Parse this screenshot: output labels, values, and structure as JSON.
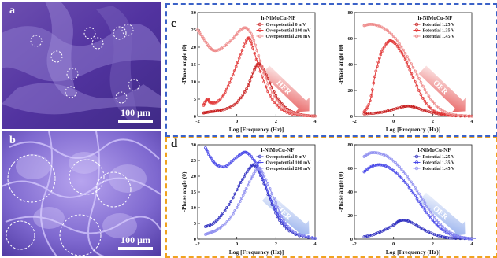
{
  "panels": {
    "a": {
      "label": "a",
      "scale": "100 μm"
    },
    "b": {
      "label": "b",
      "scale": "100 μm"
    },
    "c": {
      "label": "c"
    },
    "d": {
      "label": "d"
    }
  },
  "colors": {
    "red": "#e23a3a",
    "blue": "#3d3de0",
    "box_blue": "#3b62c8",
    "box_orange": "#f0a21e"
  },
  "chart_data": [
    {
      "id": "c-left",
      "type": "line",
      "title": "h-NiMoCu-NF",
      "xlabel": "Log [Frequency (Hz)]",
      "ylabel": "-Phase angle (θ)",
      "xlim": [
        -2,
        4
      ],
      "ylim": [
        0,
        30
      ],
      "xticks": [
        "-2",
        "0",
        "2",
        "4"
      ],
      "yticks": [
        "0",
        "5",
        "10",
        "15",
        "20",
        "25",
        "30"
      ],
      "arrow_text": "HER",
      "arrow_color": "#e23a3a",
      "legend": [
        "Overpotential 0 mV",
        "Overpotential 100 mV",
        "Overpotential 200 mV"
      ],
      "series": [
        {
          "name": "Overpotential 0 mV",
          "color": "#c81e1e",
          "points": [
            [
              -1.7,
              1
            ],
            [
              -1.4,
              1.3
            ],
            [
              -1.0,
              1.6
            ],
            [
              -0.5,
              2.3
            ],
            [
              0,
              4
            ],
            [
              0.5,
              8
            ],
            [
              0.9,
              13.5
            ],
            [
              1.15,
              15.2
            ],
            [
              1.5,
              12
            ],
            [
              2.0,
              6
            ],
            [
              2.5,
              2.5
            ],
            [
              3.0,
              0.9
            ],
            [
              3.5,
              0.3
            ],
            [
              4.0,
              0.1
            ]
          ]
        },
        {
          "name": "Overpotential 100 mV",
          "color": "#e23a3a",
          "points": [
            [
              -1.7,
              3.2
            ],
            [
              -1.5,
              5
            ],
            [
              -1.35,
              4
            ],
            [
              -1.0,
              4.2
            ],
            [
              -0.6,
              7
            ],
            [
              -0.2,
              12
            ],
            [
              0.2,
              18
            ],
            [
              0.55,
              22.5
            ],
            [
              0.75,
              21
            ],
            [
              1.2,
              13
            ],
            [
              1.7,
              6
            ],
            [
              2.3,
              2
            ],
            [
              3.0,
              0.5
            ],
            [
              4.0,
              0.1
            ]
          ]
        },
        {
          "name": "Overpotential 200 mV",
          "color": "#ee8a8a",
          "points": [
            [
              -2.0,
              25
            ],
            [
              -1.7,
              22.5
            ],
            [
              -1.4,
              20
            ],
            [
              -1.1,
              19
            ],
            [
              -0.7,
              20
            ],
            [
              -0.2,
              22.5
            ],
            [
              0.2,
              25
            ],
            [
              0.5,
              25.5
            ],
            [
              0.8,
              23
            ],
            [
              1.2,
              16
            ],
            [
              1.7,
              8
            ],
            [
              2.3,
              3
            ],
            [
              3.0,
              0.8
            ],
            [
              4.0,
              0.1
            ]
          ]
        }
      ]
    },
    {
      "id": "c-right",
      "type": "line",
      "title": "h-NiMoCu-NF",
      "xlabel": "Log [Frequency (Hz)]",
      "ylabel": "-Phase angle (θ)",
      "xlim": [
        -2,
        4
      ],
      "ylim": [
        0,
        80
      ],
      "xticks": [
        "-2",
        "0",
        "2",
        "4"
      ],
      "yticks": [
        "0",
        "20",
        "40",
        "60",
        "80"
      ],
      "arrow_text": "OER",
      "arrow_color": "#e23a3a",
      "legend": [
        "Potential 1.25 V",
        "Potential 1.35 V",
        "Potential 1.45 V"
      ],
      "series": [
        {
          "name": "Potential 1.25 V",
          "color": "#c81e1e",
          "points": [
            [
              -1.5,
              2
            ],
            [
              -1.0,
              2.5
            ],
            [
              -0.5,
              3.5
            ],
            [
              0,
              5.5
            ],
            [
              0.5,
              7.5
            ],
            [
              0.8,
              8
            ],
            [
              1.2,
              6.5
            ],
            [
              1.7,
              4
            ],
            [
              2.3,
              2
            ],
            [
              3.0,
              0.8
            ],
            [
              4.0,
              0.2
            ]
          ]
        },
        {
          "name": "Potential 1.35 V",
          "color": "#e23a3a",
          "points": [
            [
              -1.5,
              3.5
            ],
            [
              -1.2,
              12
            ],
            [
              -0.9,
              35
            ],
            [
              -0.6,
              50
            ],
            [
              -0.3,
              57
            ],
            [
              -0.1,
              58
            ],
            [
              0.2,
              54
            ],
            [
              0.6,
              44
            ],
            [
              1.0,
              30
            ],
            [
              1.5,
              14
            ],
            [
              2.0,
              5
            ],
            [
              2.5,
              1.8
            ],
            [
              3.0,
              0.6
            ],
            [
              4.0,
              0.1
            ]
          ]
        },
        {
          "name": "Potential 1.45 V",
          "color": "#ee8a8a",
          "points": [
            [
              -1.5,
              70
            ],
            [
              -1.2,
              71
            ],
            [
              -0.8,
              70
            ],
            [
              -0.3,
              66
            ],
            [
              0.2,
              58
            ],
            [
              0.7,
              46
            ],
            [
              1.2,
              32
            ],
            [
              1.7,
              18
            ],
            [
              2.2,
              8
            ],
            [
              2.7,
              3
            ],
            [
              3.2,
              1
            ],
            [
              4.0,
              0.2
            ]
          ]
        }
      ]
    },
    {
      "id": "d-left",
      "type": "line",
      "title": "l-NiMoCu-NF",
      "xlabel": "Log [Frequency (Hz)]",
      "ylabel": "-Phase angle (θ)",
      "xlim": [
        -2,
        4
      ],
      "ylim": [
        0,
        30
      ],
      "xticks": [
        "-2",
        "0",
        "2",
        "4"
      ],
      "yticks": [
        "0",
        "5",
        "10",
        "15",
        "20",
        "25",
        "30"
      ],
      "arrow_text": "HER",
      "arrow_color": "#7a9be8",
      "legend": [
        "Overpotential 0 mV",
        "Overpotential 100 mV",
        "Overpotential 200 mV"
      ],
      "series": [
        {
          "name": "Overpotential 0 mV",
          "color": "#3030c0",
          "points": [
            [
              -1.6,
              4
            ],
            [
              -1.2,
              5
            ],
            [
              -0.8,
              7.5
            ],
            [
              -0.3,
              12
            ],
            [
              0.2,
              18
            ],
            [
              0.6,
              22
            ],
            [
              0.9,
              23.5
            ],
            [
              1.3,
              19
            ],
            [
              1.8,
              11
            ],
            [
              2.3,
              5
            ],
            [
              3.0,
              1.5
            ],
            [
              4.0,
              0.2
            ]
          ]
        },
        {
          "name": "Overpotential 100 mV",
          "color": "#4a4ae8",
          "points": [
            [
              -1.6,
              29
            ],
            [
              -1.3,
              25.5
            ],
            [
              -1.0,
              23.5
            ],
            [
              -0.6,
              23
            ],
            [
              -0.2,
              25
            ],
            [
              0.2,
              27
            ],
            [
              0.5,
              27.5
            ],
            [
              0.9,
              25
            ],
            [
              1.3,
              20
            ],
            [
              1.8,
              12
            ],
            [
              2.3,
              6
            ],
            [
              3.0,
              2
            ],
            [
              4.0,
              0.3
            ]
          ]
        },
        {
          "name": "Overpotential 200 mV",
          "color": "#8f8ff0",
          "points": [
            [
              -1.6,
              1.5
            ],
            [
              -1.3,
              2.2
            ],
            [
              -1.0,
              3
            ],
            [
              -0.5,
              5.5
            ],
            [
              0,
              10
            ],
            [
              0.4,
              15
            ],
            [
              0.8,
              20
            ],
            [
              1.1,
              22.5
            ],
            [
              1.4,
              20
            ],
            [
              1.9,
              13
            ],
            [
              2.4,
              6
            ],
            [
              3.0,
              2
            ],
            [
              4.0,
              0.3
            ]
          ]
        }
      ]
    },
    {
      "id": "d-right",
      "type": "line",
      "title": "l-NiMoCu-NF",
      "xlabel": "Log [Frequency (Hz)]",
      "ylabel": "-Phase angle (θ)",
      "xlim": [
        -2,
        4
      ],
      "ylim": [
        0,
        80
      ],
      "xticks": [
        "-2",
        "0",
        "2",
        "4"
      ],
      "yticks": [
        "0",
        "20",
        "40",
        "60",
        "80"
      ],
      "arrow_text": "OER",
      "arrow_color": "#7a9be8",
      "legend": [
        "Potential 1.25 V",
        "Potential 1.35 V",
        "Potential 1.45 V"
      ],
      "series": [
        {
          "name": "Potential 1.25 V",
          "color": "#3030c0",
          "points": [
            [
              -1.5,
              2
            ],
            [
              -1.0,
              4
            ],
            [
              -0.5,
              7.5
            ],
            [
              0,
              12
            ],
            [
              0.3,
              15.5
            ],
            [
              0.6,
              16
            ],
            [
              1.0,
              13.5
            ],
            [
              1.5,
              8.5
            ],
            [
              2.0,
              4.5
            ],
            [
              2.5,
              2
            ],
            [
              3.0,
              0.8
            ],
            [
              4.0,
              0.2
            ]
          ]
        },
        {
          "name": "Potential 1.35 V",
          "color": "#4a4ae8",
          "points": [
            [
              -1.5,
              57
            ],
            [
              -1.2,
              61
            ],
            [
              -0.8,
              63
            ],
            [
              -0.4,
              62
            ],
            [
              0,
              58
            ],
            [
              0.5,
              50
            ],
            [
              1.0,
              39
            ],
            [
              1.5,
              27
            ],
            [
              2.0,
              16
            ],
            [
              2.5,
              8
            ],
            [
              3.0,
              3.5
            ],
            [
              3.5,
              1.2
            ],
            [
              4.0,
              0.3
            ]
          ]
        },
        {
          "name": "Potential 1.45 V",
          "color": "#8f8ff0",
          "points": [
            [
              -1.5,
              70
            ],
            [
              -1.2,
              73
            ],
            [
              -0.8,
              73
            ],
            [
              -0.3,
              70
            ],
            [
              0.2,
              63
            ],
            [
              0.7,
              53
            ],
            [
              1.2,
              41
            ],
            [
              1.7,
              28
            ],
            [
              2.2,
              16
            ],
            [
              2.7,
              8
            ],
            [
              3.2,
              3
            ],
            [
              3.7,
              1
            ],
            [
              4.2,
              0.3
            ]
          ]
        }
      ]
    }
  ]
}
